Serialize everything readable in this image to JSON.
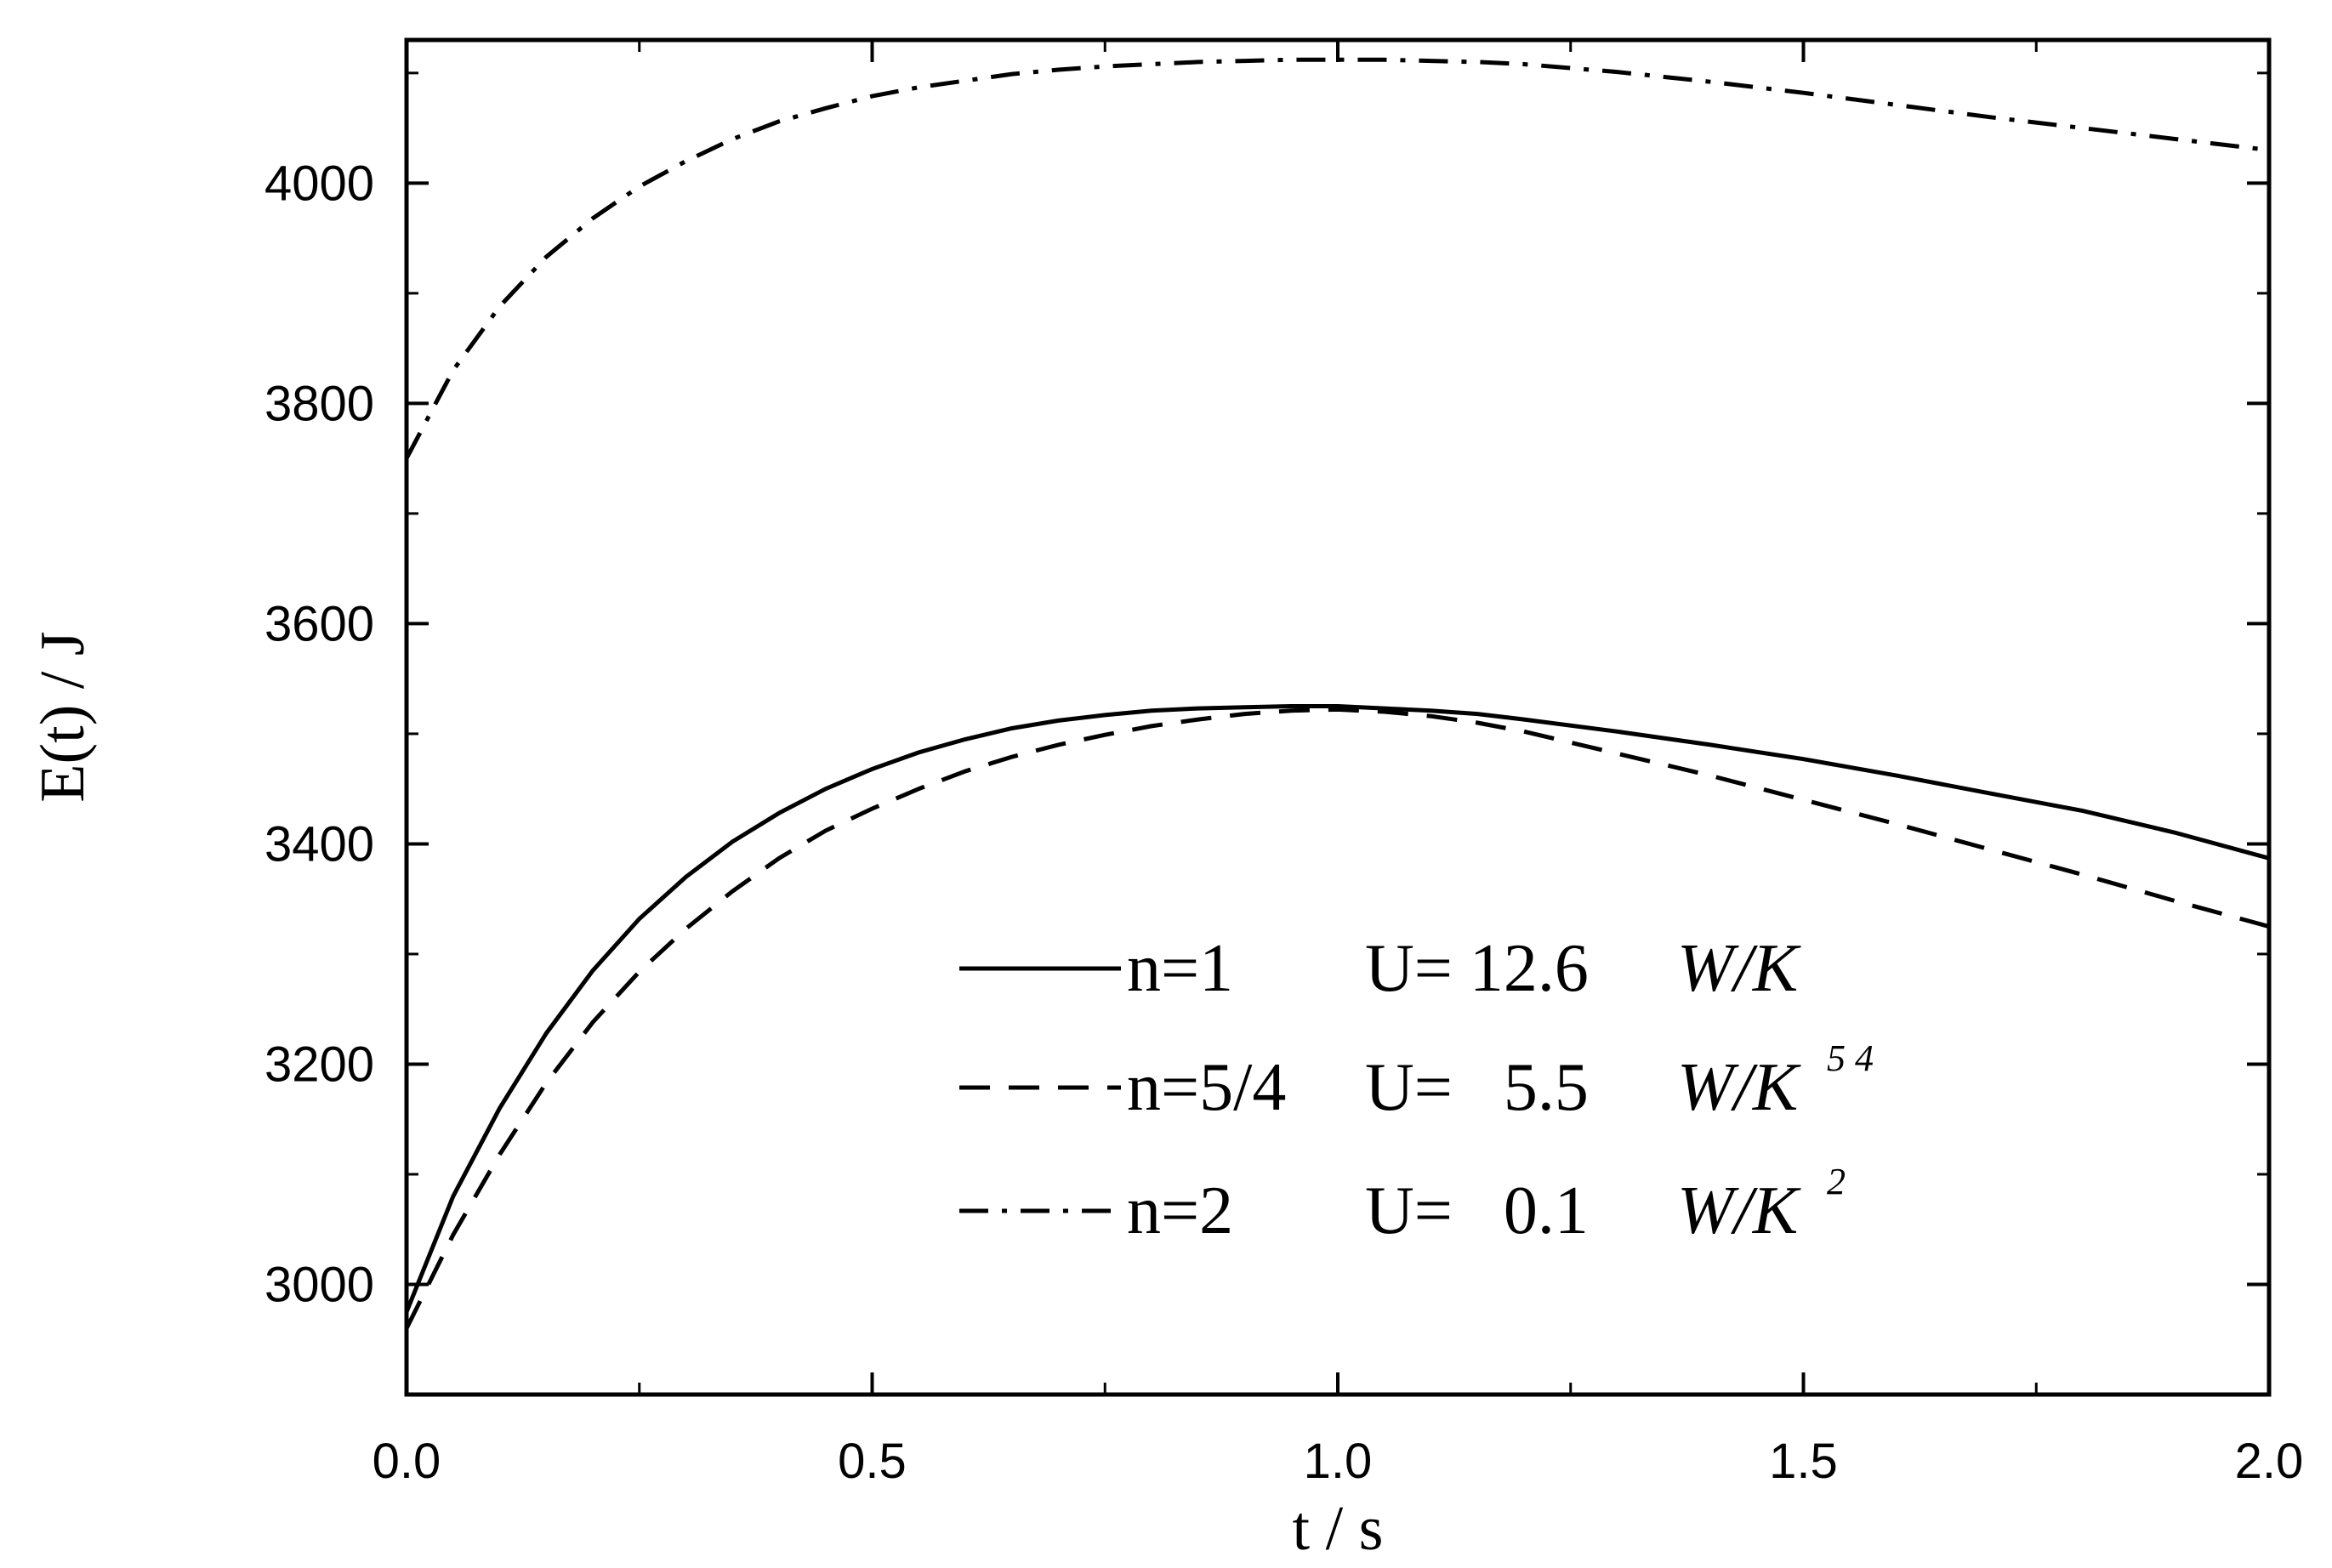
{
  "chart_data": {
    "type": "line",
    "title": "",
    "xlabel": "t / s",
    "ylabel": "E(t) / J",
    "xlim": [
      0.0,
      2.0
    ],
    "ylim": [
      2900,
      4130
    ],
    "grid": false,
    "legend_placement": "bottom-right inside",
    "xticks": [
      0.0,
      0.5,
      1.0,
      1.5,
      2.0
    ],
    "xtick_labels": [
      "0.0",
      "0.5",
      "1.0",
      "1.5",
      "2.0"
    ],
    "yticks": [
      3000,
      3200,
      3400,
      3600,
      3800,
      4000
    ],
    "ytick_labels": [
      "3000",
      "3200",
      "3400",
      "3600",
      "3800",
      "4000"
    ],
    "series": [
      {
        "name": "n=1",
        "label_u": "U= 12.6",
        "unit": "W/K",
        "unit_exp": "",
        "style": "solid",
        "x": [
          0.0,
          0.05,
          0.1,
          0.15,
          0.2,
          0.25,
          0.3,
          0.35,
          0.4,
          0.45,
          0.5,
          0.55,
          0.6,
          0.65,
          0.7,
          0.75,
          0.8,
          0.85,
          0.9,
          0.95,
          1.0,
          1.05,
          1.1,
          1.15,
          1.2,
          1.3,
          1.4,
          1.5,
          1.6,
          1.7,
          1.8,
          1.9,
          2.0
        ],
        "y": [
          2975,
          3080,
          3160,
          3228,
          3285,
          3332,
          3370,
          3402,
          3428,
          3450,
          3468,
          3483,
          3495,
          3505,
          3512,
          3517,
          3521,
          3523,
          3524,
          3525,
          3525,
          3523,
          3521,
          3518,
          3513,
          3502,
          3490,
          3477,
          3462,
          3446,
          3430,
          3410,
          3387
        ]
      },
      {
        "name": "n=5/4",
        "label_u": "U=   5.5",
        "unit": "W/K",
        "unit_exp": "5 4",
        "style": "dashed",
        "x": [
          0.0,
          0.05,
          0.1,
          0.15,
          0.2,
          0.25,
          0.3,
          0.35,
          0.4,
          0.45,
          0.5,
          0.55,
          0.6,
          0.65,
          0.7,
          0.75,
          0.8,
          0.85,
          0.9,
          0.95,
          1.0,
          1.05,
          1.1,
          1.15,
          1.2,
          1.3,
          1.4,
          1.5,
          1.6,
          1.7,
          1.8,
          1.9,
          2.0
        ],
        "y": [
          2960,
          3045,
          3118,
          3183,
          3238,
          3284,
          3323,
          3357,
          3387,
          3412,
          3432,
          3450,
          3466,
          3479,
          3490,
          3499,
          3507,
          3513,
          3518,
          3521,
          3522,
          3520,
          3516,
          3510,
          3502,
          3482,
          3462,
          3440,
          3418,
          3395,
          3372,
          3348,
          3325
        ]
      },
      {
        "name": "n=2",
        "label_u": "U=   0.1",
        "unit": "W/K",
        "unit_exp": "2",
        "style": "dashdot",
        "x": [
          0.0,
          0.05,
          0.1,
          0.15,
          0.2,
          0.25,
          0.3,
          0.35,
          0.4,
          0.45,
          0.5,
          0.55,
          0.6,
          0.65,
          0.7,
          0.75,
          0.8,
          0.85,
          0.9,
          0.95,
          1.0,
          1.05,
          1.1,
          1.15,
          1.2,
          1.3,
          1.4,
          1.5,
          1.6,
          1.7,
          1.8,
          1.9,
          2.0
        ],
        "y": [
          3750,
          3830,
          3888,
          3933,
          3968,
          3997,
          4020,
          4040,
          4056,
          4068,
          4079,
          4087,
          4093,
          4099,
          4103,
          4106,
          4108,
          4110,
          4111,
          4112,
          4112,
          4112,
          4111,
          4110,
          4108,
          4101,
          4092,
          4082,
          4071,
          4060,
          4050,
          4040,
          4030
        ]
      }
    ]
  }
}
